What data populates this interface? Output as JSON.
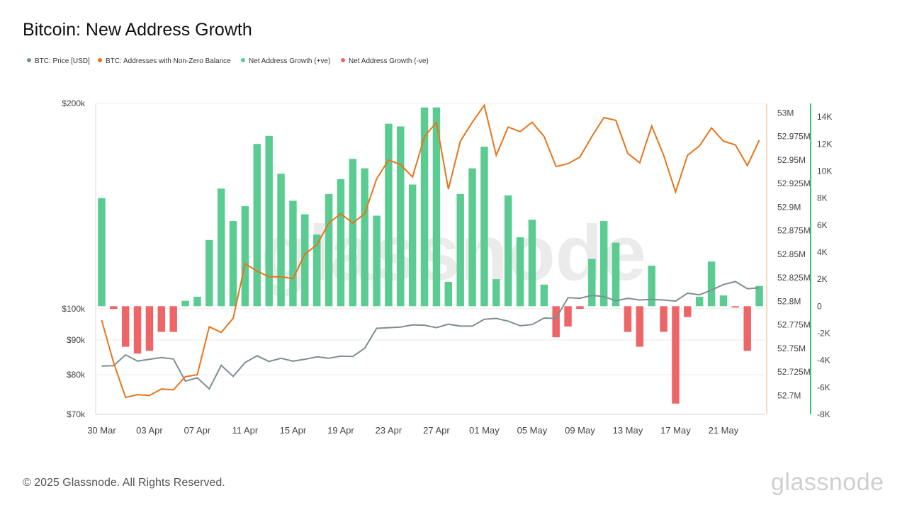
{
  "title": "Bitcoin: New Address Growth",
  "legend": [
    {
      "label": "BTC: Price [USD]",
      "color": "#7d8e93"
    },
    {
      "label": "BTC: Addresses with Non-Zero Balance",
      "color": "#e8741a"
    },
    {
      "label": "Net Address Growth (+ve)",
      "color": "#5acc92"
    },
    {
      "label": "Net Address Growth (-ve)",
      "color": "#ee6567"
    }
  ],
  "footer": "© 2025 Glassnode. All Rights Reserved.",
  "brand": "glassnode",
  "chart_data": {
    "type": "bar+line",
    "x_tick_labels": [
      "30 Mar",
      "03 Apr",
      "07 Apr",
      "11 Apr",
      "15 Apr",
      "19 Apr",
      "23 Apr",
      "27 Apr",
      "01 May",
      "05 May",
      "09 May",
      "13 May",
      "17 May",
      "21 May"
    ],
    "dates": [
      "30 Mar",
      "31 Mar",
      "01 Apr",
      "02 Apr",
      "03 Apr",
      "04 Apr",
      "05 Apr",
      "06 Apr",
      "07 Apr",
      "08 Apr",
      "09 Apr",
      "10 Apr",
      "11 Apr",
      "12 Apr",
      "13 Apr",
      "14 Apr",
      "15 Apr",
      "16 Apr",
      "17 Apr",
      "18 Apr",
      "19 Apr",
      "20 Apr",
      "21 Apr",
      "22 Apr",
      "23 Apr",
      "24 Apr",
      "25 Apr",
      "26 Apr",
      "27 Apr",
      "28 Apr",
      "29 Apr",
      "30 Apr",
      "01 May",
      "02 May",
      "03 May",
      "04 May",
      "05 May",
      "06 May",
      "07 May",
      "08 May",
      "09 May",
      "10 May",
      "11 May",
      "12 May",
      "13 May",
      "14 May",
      "15 May",
      "16 May",
      "17 May",
      "18 May",
      "19 May",
      "20 May",
      "21 May",
      "22 May",
      "23 May",
      "24 May"
    ],
    "net_address_growth": [
      8000,
      -200,
      -3000,
      -3500,
      -3300,
      -1900,
      -1900,
      400,
      700,
      4900,
      8700,
      6300,
      7400,
      12000,
      12600,
      9800,
      7800,
      6800,
      5300,
      8300,
      9400,
      10900,
      10200,
      6700,
      13500,
      13300,
      9000,
      14700,
      14700,
      1800,
      8300,
      10200,
      11800,
      2000,
      8200,
      5100,
      6400,
      1600,
      -2300,
      -1500,
      -200,
      3500,
      6300,
      4700,
      -1900,
      -3000,
      3000,
      -1900,
      -7200,
      -800,
      700,
      3300,
      800,
      -100,
      -3300,
      1500
    ],
    "addresses_non_zero": [
      52.78,
      52.735,
      52.698,
      52.701,
      52.7,
      52.707,
      52.706,
      52.72,
      52.722,
      52.773,
      52.767,
      52.782,
      52.84,
      52.832,
      52.826,
      52.826,
      52.824,
      52.85,
      52.86,
      52.883,
      52.893,
      52.883,
      52.893,
      52.93,
      52.95,
      52.945,
      52.932,
      52.975,
      52.99,
      52.919,
      52.97,
      52.99,
      53.008,
      52.955,
      52.985,
      52.98,
      52.99,
      52.975,
      52.943,
      52.946,
      52.953,
      52.975,
      52.995,
      52.992,
      52.957,
      52.947,
      52.986,
      52.955,
      52.916,
      52.955,
      52.965,
      52.984,
      52.97,
      52.966,
      52.944,
      52.971
    ],
    "price_usd": [
      82400,
      82500,
      85600,
      83800,
      84300,
      84800,
      84400,
      78300,
      79200,
      76300,
      82600,
      79600,
      83400,
      85300,
      83700,
      84600,
      83800,
      84300,
      85000,
      84600,
      85200,
      85100,
      87500,
      93600,
      93800,
      94000,
      94700,
      94600,
      93800,
      94900,
      94300,
      94300,
      96500,
      96800,
      95900,
      94400,
      94800,
      96900,
      96800,
      103800,
      103600,
      104600,
      104200,
      102700,
      103600,
      103000,
      103200,
      103000,
      102600,
      105400,
      104800,
      106500,
      108500,
      109600,
      107000,
      107300
    ],
    "y_left": {
      "label": "",
      "ticks": [
        "$70k",
        "$80k",
        "$90k",
        "$100k",
        "$200k"
      ],
      "scale": "log",
      "range": [
        70000,
        200000
      ]
    },
    "y_right_addresses": {
      "ticks": [
        "52.7M",
        "52.725M",
        "52.75M",
        "52.775M",
        "52.8M",
        "52.825M",
        "52.85M",
        "52.875M",
        "52.9M",
        "52.925M",
        "52.95M",
        "52.975M",
        "53M"
      ],
      "range": [
        52.68,
        53.01
      ]
    },
    "y_right_growth": {
      "ticks": [
        "-8K",
        "-6K",
        "-4K",
        "-2K",
        "0",
        "2K",
        "4K",
        "6K",
        "8K",
        "10K",
        "12K",
        "14K"
      ],
      "range": [
        -8000,
        15000
      ]
    },
    "watermark": "glassnode",
    "grid": "horizontal at price ticks"
  }
}
